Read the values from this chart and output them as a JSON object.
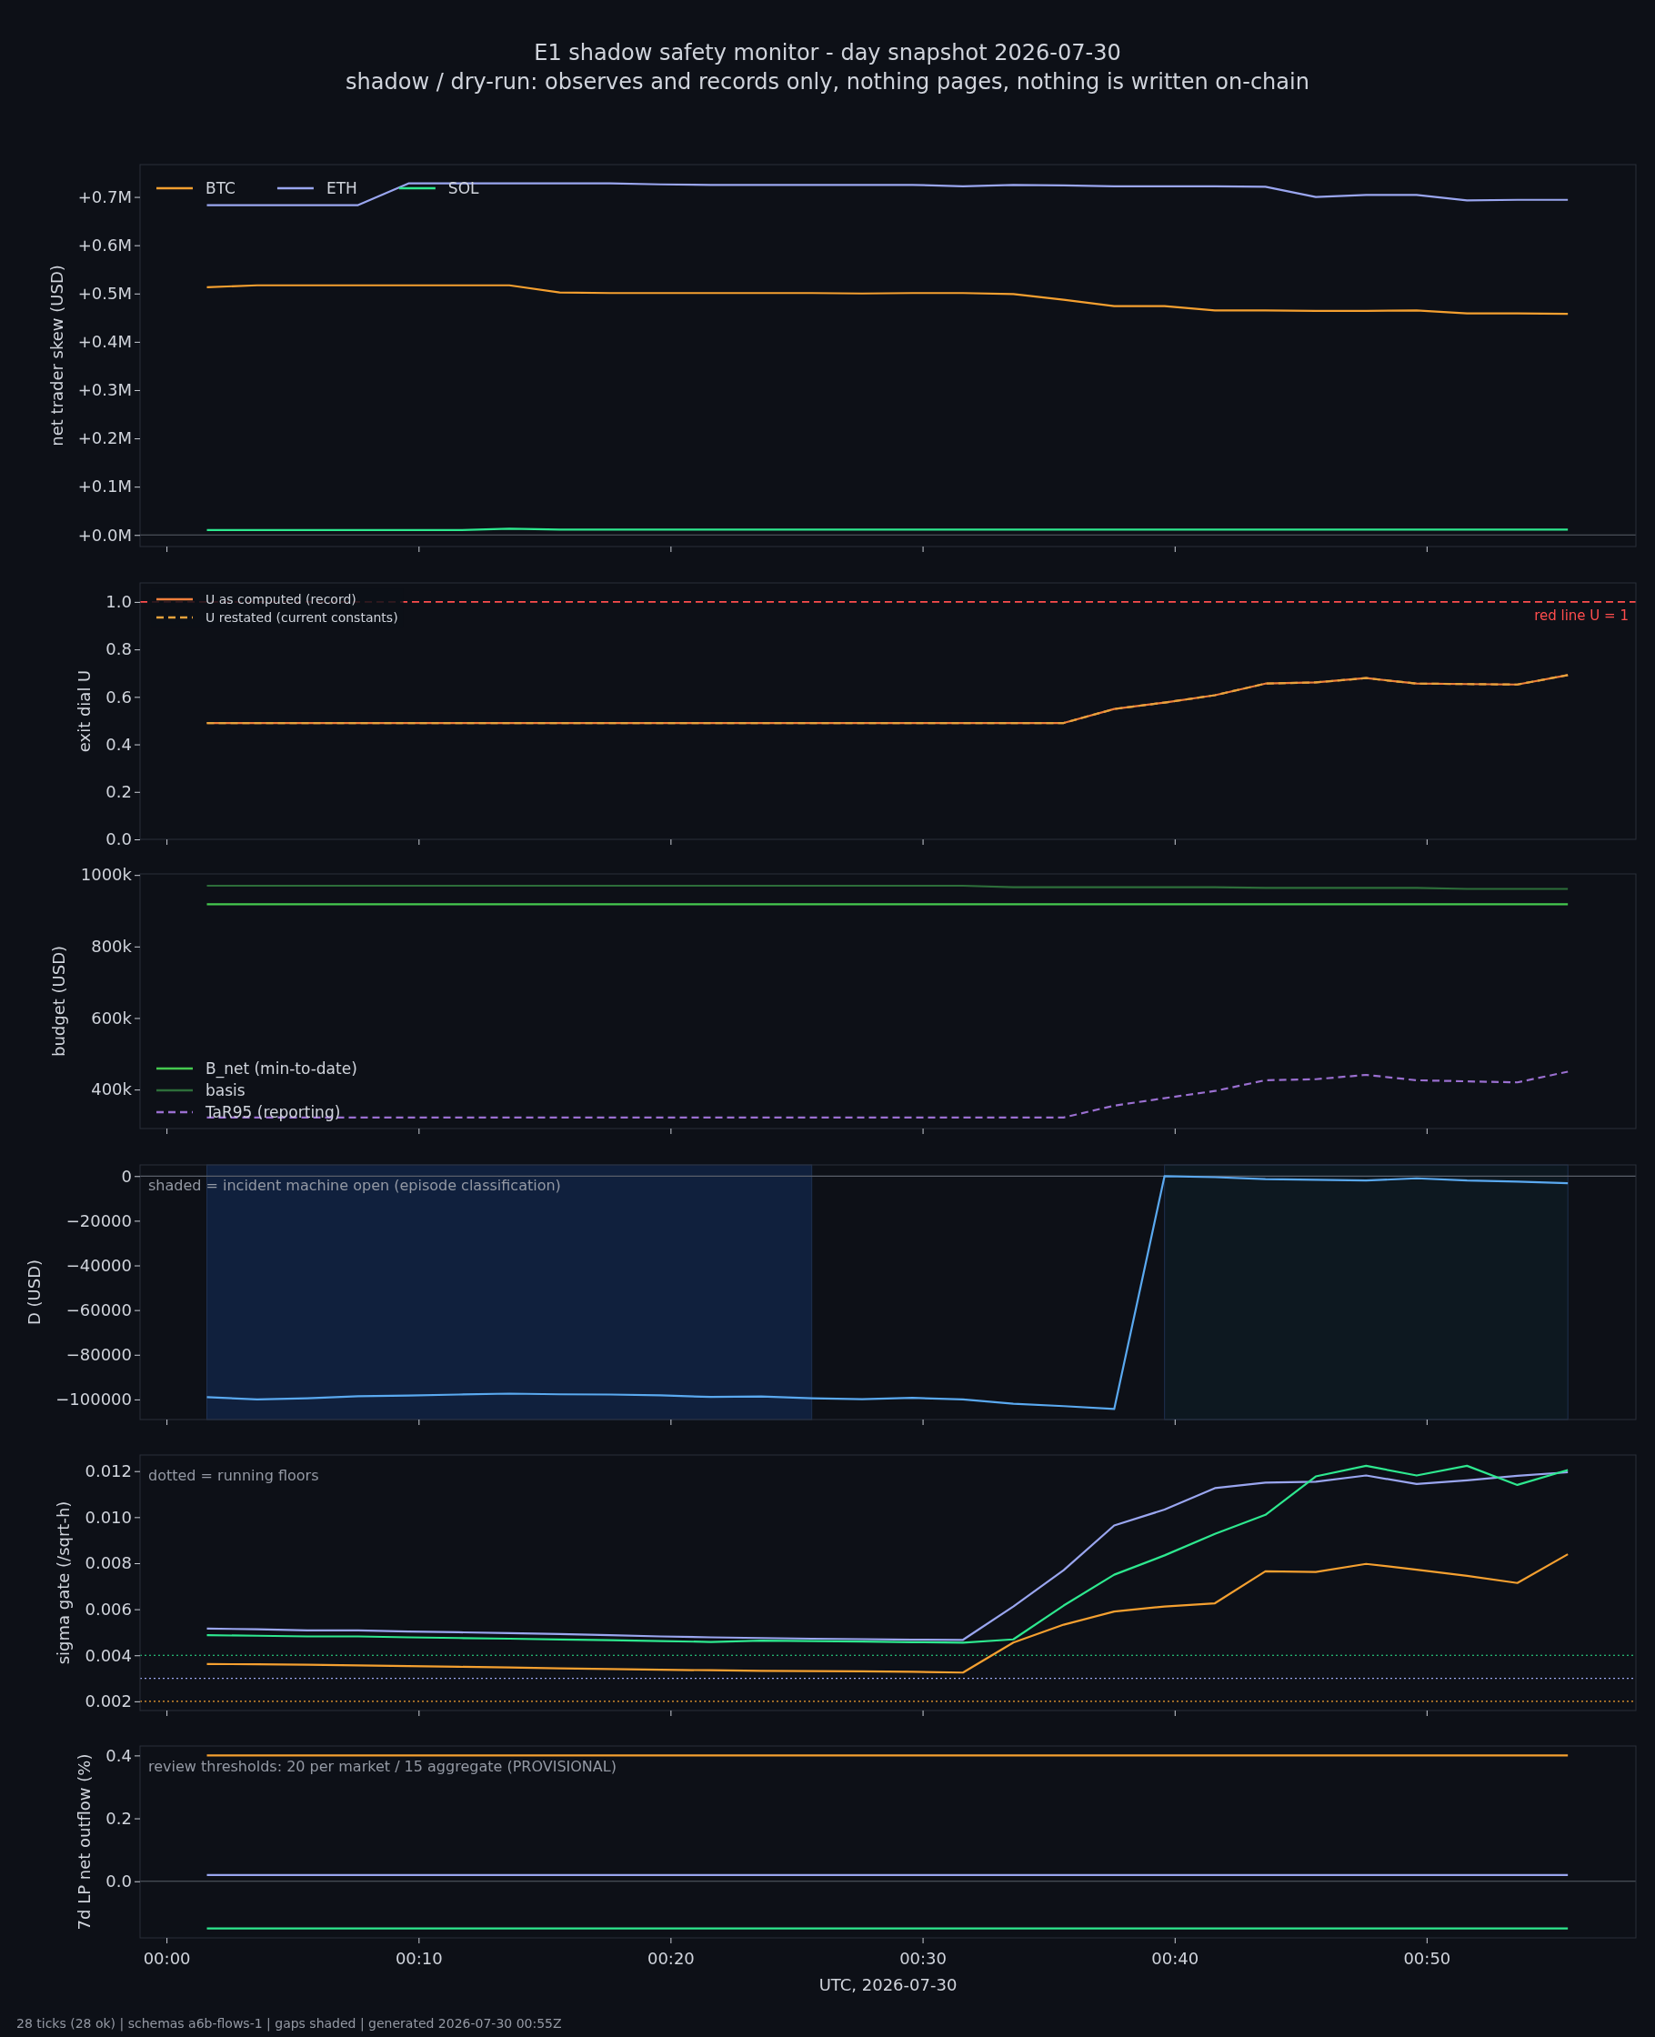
{
  "chart_data": [
    {
      "type": "line",
      "title": "E1 shadow safety monitor - day snapshot 2026-07-30",
      "subtitle": "shadow / dry-run: observes and records only, nothing pages, nothing is written on-chain",
      "ylabel": "net trader skew (USD)",
      "x": [
        0.0267,
        0.06,
        0.0933,
        0.1267,
        0.16,
        0.1933,
        0.2267,
        0.26,
        0.2933,
        0.3267,
        0.36,
        0.3933,
        0.4267,
        0.46,
        0.4933,
        0.5267,
        0.56,
        0.5933,
        0.6267,
        0.66,
        0.6933,
        0.7267,
        0.76,
        0.7933,
        0.8267,
        0.86,
        0.8933,
        0.9267
      ],
      "xlim": [
        -0.0175,
        0.9717
      ],
      "xticks": [
        {
          "value": 0,
          "label": null
        },
        {
          "value": 0.1667,
          "label": null
        },
        {
          "value": 0.3333,
          "label": null
        },
        {
          "value": 0.5,
          "label": null
        },
        {
          "value": 0.6667,
          "label": null
        },
        {
          "value": 0.8333,
          "label": null
        }
      ],
      "ylim": [
        -24000,
        767000
      ],
      "yticks": [
        {
          "value": 0,
          "label": "+0.0M"
        },
        {
          "value": 100000,
          "label": "+0.1M"
        },
        {
          "value": 200000,
          "label": "+0.2M"
        },
        {
          "value": 300000,
          "label": "+0.3M"
        },
        {
          "value": 400000,
          "label": "+0.4M"
        },
        {
          "value": 500000,
          "label": "+0.5M"
        },
        {
          "value": 600000,
          "label": "+0.6M"
        },
        {
          "value": 700000,
          "label": "+0.7M"
        }
      ],
      "tick_labels": "y",
      "legend": "top left",
      "grid": false,
      "ref_lines": [
        {
          "axis": "y",
          "value": 0,
          "color": "#5a5f6a"
        }
      ],
      "series": [
        {
          "name": "BTC",
          "color": "#f5a030",
          "values": [
            513000,
            517000,
            517000,
            517000,
            517000,
            517000,
            517000,
            502000,
            501000,
            501000,
            501000,
            501000,
            501000,
            500000,
            501000,
            501000,
            499000,
            487000,
            474000,
            474000,
            465000,
            465000,
            464000,
            464000,
            465000,
            459000,
            459000,
            458000
          ]
        },
        {
          "name": "ETH",
          "color": "#9aa6f0",
          "values": [
            683000,
            683000,
            683000,
            683000,
            728000,
            728000,
            728000,
            728000,
            728000,
            726000,
            725000,
            725000,
            725000,
            725000,
            725000,
            722000,
            725000,
            724000,
            722000,
            722000,
            722000,
            721000,
            700000,
            704000,
            704000,
            693000,
            694000,
            694000
          ]
        },
        {
          "name": "SOL",
          "color": "#2ee88f",
          "values": [
            10000,
            10000,
            10000,
            10000,
            10000,
            10000,
            13000,
            11000,
            11000,
            11000,
            11000,
            11000,
            11000,
            11000,
            11000,
            11000,
            11000,
            11000,
            11000,
            11000,
            11000,
            11000,
            11000,
            11000,
            11000,
            11000,
            11000,
            11000
          ]
        }
      ]
    },
    {
      "type": "line",
      "ylabel": "exit dial U",
      "x": [
        0.0267,
        0.06,
        0.0933,
        0.1267,
        0.16,
        0.1933,
        0.2267,
        0.26,
        0.2933,
        0.3267,
        0.36,
        0.3933,
        0.4267,
        0.46,
        0.4933,
        0.5267,
        0.56,
        0.5933,
        0.6267,
        0.66,
        0.6933,
        0.7267,
        0.76,
        0.7933,
        0.8267,
        0.86,
        0.8933,
        0.9267
      ],
      "xlim": [
        -0.0175,
        0.9717
      ],
      "xticks": [
        {
          "value": 0,
          "label": null
        },
        {
          "value": 0.1667,
          "label": null
        },
        {
          "value": 0.3333,
          "label": null
        },
        {
          "value": 0.5,
          "label": null
        },
        {
          "value": 0.6667,
          "label": null
        },
        {
          "value": 0.8333,
          "label": null
        }
      ],
      "ylim": [
        0,
        1.08
      ],
      "yticks": [
        {
          "value": 0,
          "label": "0.0"
        },
        {
          "value": 0.2,
          "label": "0.2"
        },
        {
          "value": 0.4,
          "label": "0.4"
        },
        {
          "value": 0.6,
          "label": "0.6"
        },
        {
          "value": 0.8,
          "label": "0.8"
        },
        {
          "value": 1,
          "label": "1.0"
        }
      ],
      "tick_labels": "y",
      "legend": "top left",
      "grid": false,
      "ref_lines": [
        {
          "axis": "y",
          "value": 1,
          "label": "red line U = 1",
          "color": "#ff4d4d",
          "line_style": "dashed"
        }
      ],
      "series": [
        {
          "name": "U as computed (record)",
          "color": "#f07f3c",
          "line_style": "solid",
          "values": [
            0.49,
            0.49,
            0.49,
            0.49,
            0.49,
            0.49,
            0.49,
            0.49,
            0.49,
            0.49,
            0.49,
            0.49,
            0.49,
            0.49,
            0.49,
            0.49,
            0.49,
            0.49,
            0.549,
            0.576,
            0.607,
            0.656,
            0.661,
            0.679,
            0.656,
            0.654,
            0.652,
            0.692
          ]
        },
        {
          "name": "U restated (current constants)",
          "color": "#e6a23c",
          "line_style": "dashed",
          "values": [
            0.49,
            0.49,
            0.49,
            0.49,
            0.49,
            0.49,
            0.49,
            0.49,
            0.49,
            0.49,
            0.49,
            0.49,
            0.49,
            0.49,
            0.49,
            0.49,
            0.49,
            0.49,
            0.549,
            0.576,
            0.607,
            0.656,
            0.661,
            0.679,
            0.656,
            0.654,
            0.652,
            0.692
          ]
        }
      ]
    },
    {
      "type": "line",
      "ylabel": "budget (USD)",
      "x": [
        0.0267,
        0.06,
        0.0933,
        0.1267,
        0.16,
        0.1933,
        0.2267,
        0.26,
        0.2933,
        0.3267,
        0.36,
        0.3933,
        0.4267,
        0.46,
        0.4933,
        0.5267,
        0.56,
        0.5933,
        0.6267,
        0.66,
        0.6933,
        0.7267,
        0.76,
        0.7933,
        0.8267,
        0.86,
        0.8933,
        0.9267
      ],
      "xlim": [
        -0.0175,
        0.9717
      ],
      "xticks": [
        {
          "value": 0,
          "label": null
        },
        {
          "value": 0.1667,
          "label": null
        },
        {
          "value": 0.3333,
          "label": null
        },
        {
          "value": 0.5,
          "label": null
        },
        {
          "value": 0.6667,
          "label": null
        },
        {
          "value": 0.8333,
          "label": null
        }
      ],
      "ylim": [
        291000,
        1003000
      ],
      "yticks": [
        {
          "value": 400000,
          "label": "400k"
        },
        {
          "value": 600000,
          "label": "600k"
        },
        {
          "value": 800000,
          "label": "800k"
        },
        {
          "value": 1000000,
          "label": "1000k"
        }
      ],
      "tick_labels": "y",
      "legend": "bottom left",
      "grid": false,
      "series": [
        {
          "name": "B_net (min-to-date)",
          "color": "#45c94f",
          "line_style": "solid",
          "values": [
            918000,
            918000,
            918000,
            918000,
            918000,
            918000,
            918000,
            918000,
            918000,
            918000,
            918000,
            918000,
            918000,
            918000,
            918000,
            918000,
            918000,
            918000,
            918000,
            918000,
            918000,
            918000,
            918000,
            918000,
            918000,
            918000,
            918000,
            918000
          ]
        },
        {
          "name": "basis",
          "color": "#2d6e3a",
          "line_style": "solid",
          "values": [
            970000,
            970000,
            970000,
            970000,
            970000,
            970000,
            970000,
            970000,
            970000,
            970000,
            970000,
            970000,
            970000,
            970000,
            970000,
            970000,
            966000,
            966000,
            966000,
            966000,
            966000,
            964000,
            964000,
            964000,
            964000,
            961000,
            961000,
            961000
          ]
        },
        {
          "name": "TaR95 (reporting)",
          "color": "#9a6fd0",
          "line_style": "dashed",
          "values": [
            322000,
            322000,
            322000,
            322000,
            322000,
            322000,
            322000,
            322000,
            322000,
            322000,
            322000,
            322000,
            322000,
            322000,
            322000,
            322000,
            322000,
            322000,
            355000,
            376000,
            396000,
            426000,
            429000,
            441000,
            426000,
            423000,
            420000,
            450000
          ]
        }
      ]
    },
    {
      "type": "line",
      "ylabel": "D (USD)",
      "x": [
        0.0267,
        0.06,
        0.0933,
        0.1267,
        0.16,
        0.1933,
        0.2267,
        0.26,
        0.2933,
        0.3267,
        0.36,
        0.3933,
        0.4267,
        0.46,
        0.4933,
        0.5267,
        0.56,
        0.5933,
        0.6267,
        0.66,
        0.6933,
        0.7267,
        0.76,
        0.7933,
        0.8267,
        0.86,
        0.8933,
        0.9267
      ],
      "xlim": [
        -0.0175,
        0.9717
      ],
      "xticks": [
        {
          "value": 0,
          "label": null
        },
        {
          "value": 0.1667,
          "label": null
        },
        {
          "value": 0.3333,
          "label": null
        },
        {
          "value": 0.5,
          "label": null
        },
        {
          "value": 0.6667,
          "label": null
        },
        {
          "value": 0.8333,
          "label": null
        }
      ],
      "ylim": [
        -109000,
        5000
      ],
      "yticks": [
        {
          "value": -100000,
          "label": "−100000"
        },
        {
          "value": -80000,
          "label": "−80000"
        },
        {
          "value": -60000,
          "label": "−60000"
        },
        {
          "value": -40000,
          "label": "−40000"
        },
        {
          "value": -20000,
          "label": "−20000"
        },
        0
      ],
      "tick_labels": "y",
      "grid": false,
      "annotations": [
        "shaded = incident machine open (episode classification)"
      ],
      "bands": [
        {
          "axis": "x",
          "from": 0.0267,
          "to": 0.4267,
          "color": "#10203d"
        },
        {
          "axis": "x",
          "from": 0.66,
          "to": 0.9267,
          "color": "#0d1820"
        }
      ],
      "ref_lines": [
        {
          "axis": "y",
          "value": 0,
          "color": "#5a5f6a"
        }
      ],
      "series": [
        {
          "color": "#5aa9f0",
          "values": [
            -99000,
            -100000,
            -99500,
            -98600,
            -98300,
            -97800,
            -97400,
            -97700,
            -97800,
            -98200,
            -98900,
            -98700,
            -99500,
            -99900,
            -99300,
            -100000,
            -101900,
            -103000,
            -104300,
            0,
            -500,
            -1400,
            -1700,
            -2000,
            -1000,
            -2000,
            -2500,
            -3200
          ]
        }
      ]
    },
    {
      "type": "line",
      "ylabel": "sigma gate (/sqrt-h)",
      "x": [
        0.0267,
        0.06,
        0.0933,
        0.1267,
        0.16,
        0.1933,
        0.2267,
        0.26,
        0.2933,
        0.3267,
        0.36,
        0.3933,
        0.4267,
        0.46,
        0.4933,
        0.5267,
        0.56,
        0.5933,
        0.6267,
        0.66,
        0.6933,
        0.7267,
        0.76,
        0.7933,
        0.8267,
        0.86,
        0.8933,
        0.9267
      ],
      "xlim": [
        -0.0175,
        0.9717
      ],
      "xticks": [
        {
          "value": 0,
          "label": null
        },
        {
          "value": 0.1667,
          "label": null
        },
        {
          "value": 0.3333,
          "label": null
        },
        {
          "value": 0.5,
          "label": null
        },
        {
          "value": 0.6667,
          "label": null
        },
        {
          "value": 0.8333,
          "label": null
        }
      ],
      "ylim": [
        0.0016,
        0.0127
      ],
      "yticks": [
        0.002,
        0.004,
        0.006,
        0.008,
        {
          "value": 0.01,
          "label": "0.010"
        },
        0.012
      ],
      "tick_labels": "y",
      "grid": false,
      "annotations": [
        "dotted = running floors"
      ],
      "ref_lines": [
        {
          "axis": "y",
          "value": 0.004,
          "color": "#2ee88f",
          "line_style": "dotted"
        },
        {
          "axis": "y",
          "value": 0.003,
          "color": "#9aa6f0",
          "line_style": "dotted"
        },
        {
          "axis": "y",
          "value": 0.002,
          "color": "#f5a030",
          "line_style": "dotted"
        }
      ],
      "series": [
        {
          "color": "#f5a030",
          "values": [
            0.00362,
            0.00361,
            0.00359,
            0.00356,
            0.00353,
            0.0035,
            0.00347,
            0.00343,
            0.0034,
            0.00337,
            0.00335,
            0.00332,
            0.00331,
            0.0033,
            0.00328,
            0.00325,
            0.00455,
            0.00533,
            0.0059,
            0.00612,
            0.00626,
            0.00765,
            0.00762,
            0.00797,
            0.00772,
            0.00745,
            0.00714,
            0.00839
          ]
        },
        {
          "color": "#9aa6f0",
          "values": [
            0.00516,
            0.00513,
            0.00508,
            0.00508,
            0.00503,
            0.005,
            0.00496,
            0.00492,
            0.00487,
            0.00482,
            0.00478,
            0.00475,
            0.00472,
            0.0047,
            0.00468,
            0.00467,
            0.00612,
            0.0077,
            0.00964,
            0.01033,
            0.01126,
            0.0115,
            0.01154,
            0.01181,
            0.01144,
            0.0116,
            0.0118,
            0.01195
          ]
        },
        {
          "color": "#2ee88f",
          "values": [
            0.00487,
            0.00485,
            0.00482,
            0.00482,
            0.00478,
            0.00475,
            0.00472,
            0.00469,
            0.00466,
            0.00462,
            0.00458,
            0.00464,
            0.00462,
            0.0046,
            0.00457,
            0.00455,
            0.00469,
            0.00616,
            0.0075,
            0.00834,
            0.00927,
            0.0101,
            0.01177,
            0.01223,
            0.01181,
            0.01223,
            0.0114,
            0.01205
          ]
        }
      ]
    },
    {
      "type": "line",
      "ylabel": "7d LP net outflow (%)",
      "xlabel": "UTC, 2026-07-30",
      "x": [
        0.0267,
        0.06,
        0.0933,
        0.1267,
        0.16,
        0.1933,
        0.2267,
        0.26,
        0.2933,
        0.3267,
        0.36,
        0.3933,
        0.4267,
        0.46,
        0.4933,
        0.5267,
        0.56,
        0.5933,
        0.6267,
        0.66,
        0.6933,
        0.7267,
        0.76,
        0.7933,
        0.8267,
        0.86,
        0.8933,
        0.9267
      ],
      "xlim": [
        -0.0175,
        0.9717
      ],
      "xticks": [
        {
          "value": 0,
          "label": "00:00"
        },
        {
          "value": 0.1667,
          "label": "00:10"
        },
        {
          "value": 0.3333,
          "label": "00:20"
        },
        {
          "value": 0.5,
          "label": "00:30"
        },
        {
          "value": 0.6667,
          "label": "00:40"
        },
        {
          "value": 0.8333,
          "label": "00:50"
        }
      ],
      "ylim": [
        -0.18,
        0.43
      ],
      "yticks": [
        {
          "value": 0,
          "label": "0.0"
        },
        {
          "value": 0.2,
          "label": "0.2"
        },
        {
          "value": 0.4,
          "label": "0.4"
        }
      ],
      "grid": false,
      "annotations": [
        "review thresholds: 20 per market / 15 aggregate (PROVISIONAL)",
        "28 ticks (28 ok) | schemas a6b-flows-1 | gaps shaded | generated 2026-07-30 00:55Z"
      ],
      "ref_lines": [
        {
          "axis": "y",
          "value": 0,
          "color": "#5a5f6a"
        }
      ],
      "series": [
        {
          "color": "#f5a030",
          "values": [
            0.4,
            0.4,
            0.4,
            0.4,
            0.4,
            0.4,
            0.4,
            0.4,
            0.4,
            0.4,
            0.4,
            0.4,
            0.4,
            0.4,
            0.4,
            0.4,
            0.4,
            0.4,
            0.4,
            0.4,
            0.4,
            0.4,
            0.4,
            0.4,
            0.4,
            0.4,
            0.4,
            0.4
          ]
        },
        {
          "color": "#9aa6f0",
          "values": [
            0.02,
            0.02,
            0.02,
            0.02,
            0.02,
            0.02,
            0.02,
            0.02,
            0.02,
            0.02,
            0.02,
            0.02,
            0.02,
            0.02,
            0.02,
            0.02,
            0.02,
            0.02,
            0.02,
            0.02,
            0.02,
            0.02,
            0.02,
            0.02,
            0.02,
            0.02,
            0.02,
            0.02
          ]
        },
        {
          "color": "#2ee88f",
          "values": [
            -0.15,
            -0.15,
            -0.15,
            -0.15,
            -0.15,
            -0.15,
            -0.15,
            -0.15,
            -0.15,
            -0.15,
            -0.15,
            -0.15,
            -0.15,
            -0.15,
            -0.15,
            -0.15,
            -0.15,
            -0.15,
            -0.15,
            -0.15,
            -0.15,
            -0.15,
            -0.15,
            -0.15,
            -0.15,
            -0.15,
            -0.15,
            -0.15
          ]
        }
      ]
    }
  ]
}
